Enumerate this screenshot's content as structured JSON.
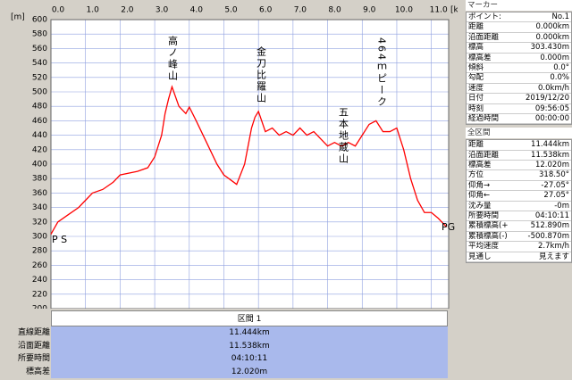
{
  "chart_data": {
    "type": "line",
    "x_label": "[km]",
    "y_label": "[m]",
    "x": [
      0,
      0.2,
      0.5,
      0.8,
      1.0,
      1.2,
      1.5,
      1.8,
      2.0,
      2.5,
      2.8,
      3.0,
      3.2,
      3.3,
      3.4,
      3.5,
      3.7,
      3.9,
      4.0,
      4.2,
      4.5,
      4.8,
      5.0,
      5.2,
      5.37,
      5.6,
      5.8,
      5.9,
      6.0,
      6.2,
      6.4,
      6.6,
      6.8,
      7.0,
      7.2,
      7.4,
      7.6,
      7.8,
      8.0,
      8.2,
      8.4,
      8.6,
      8.8,
      9.0,
      9.2,
      9.4,
      9.6,
      9.8,
      10.0,
      10.2,
      10.4,
      10.6,
      10.8,
      11.0,
      11.2,
      11.44
    ],
    "series": [
      {
        "name": "elevation",
        "color": "#ff0000",
        "values": [
          303,
          320,
          330,
          340,
          350,
          360,
          365,
          375,
          385,
          390,
          395,
          410,
          440,
          470,
          490,
          507,
          480,
          470,
          479,
          460,
          430,
          400,
          385,
          378,
          372,
          400,
          450,
          465,
          473,
          445,
          450,
          440,
          445,
          440,
          450,
          440,
          445,
          435,
          425,
          430,
          425,
          430,
          425,
          440,
          455,
          460,
          445,
          445,
          450,
          420,
          380,
          350,
          333,
          333,
          325,
          313
        ]
      }
    ],
    "xlim": [
      0,
      11.5
    ],
    "ylim": [
      200,
      600
    ],
    "xticks": [
      {
        "value": 0,
        "label": "0.0"
      },
      {
        "value": 1,
        "label": "1.0"
      },
      {
        "value": 2,
        "label": "2.0"
      },
      {
        "value": 3,
        "label": "3.0"
      },
      {
        "value": 4,
        "label": "4.0"
      },
      {
        "value": 5,
        "label": "5.0"
      },
      {
        "value": 6,
        "label": "6.0"
      },
      {
        "value": 7,
        "label": "7.0"
      },
      {
        "value": 8,
        "label": "8.0"
      },
      {
        "value": 9,
        "label": "9.0"
      },
      {
        "value": 10,
        "label": "10.0"
      },
      {
        "value": 11,
        "label": "11.0"
      }
    ],
    "yticks": [
      200,
      220,
      240,
      260,
      280,
      300,
      320,
      340,
      360,
      380,
      400,
      420,
      440,
      460,
      480,
      500,
      520,
      540,
      560,
      580,
      600
    ],
    "grid": true,
    "annotations": [
      "高ノ峰山",
      "金刀比羅山",
      "五本地蔵山",
      "464ｍピーク",
      "P S",
      "PG"
    ]
  },
  "section": {
    "title": "区間 1",
    "labels": [
      "直線距離",
      "沿面距離",
      "所要時間",
      "標高差"
    ],
    "values": [
      "11.444km",
      "11.538km",
      "04:10:11",
      "12.020m"
    ]
  },
  "marker": {
    "title": "マーカー",
    "rows": [
      [
        "ポイント:",
        "No.1"
      ],
      [
        "距離",
        "0.000km"
      ],
      [
        "沿面距離",
        "0.000km"
      ],
      [
        "標高",
        "303.430m"
      ],
      [
        "標高差",
        "0.000m"
      ],
      [
        "傾斜",
        "0.0°"
      ],
      [
        "勾配",
        "0.0%"
      ],
      [
        "速度",
        "0.0km/h"
      ],
      [
        "日付",
        "2019/12/20"
      ],
      [
        "時刻",
        "09:56:05"
      ],
      [
        "経過時間",
        "00:00:00"
      ]
    ]
  },
  "total": {
    "title": "全区間",
    "rows": [
      [
        "距離",
        "11.444km"
      ],
      [
        "沿面距離",
        "11.538km"
      ],
      [
        "標高差",
        "12.020m"
      ],
      [
        "方位",
        "318.50°"
      ],
      [
        "仰角→",
        "-27.05°"
      ],
      [
        "仰角←",
        "27.05°"
      ],
      [
        "沈み量",
        "-0m"
      ],
      [
        "所要時間",
        "04:10:11"
      ],
      [
        "累積標高(+)",
        "512.890m"
      ],
      [
        "累積標高(-)",
        "-500.870m"
      ],
      [
        "平均速度",
        "2.7km/h"
      ],
      [
        "見通し",
        "見えます"
      ]
    ]
  }
}
